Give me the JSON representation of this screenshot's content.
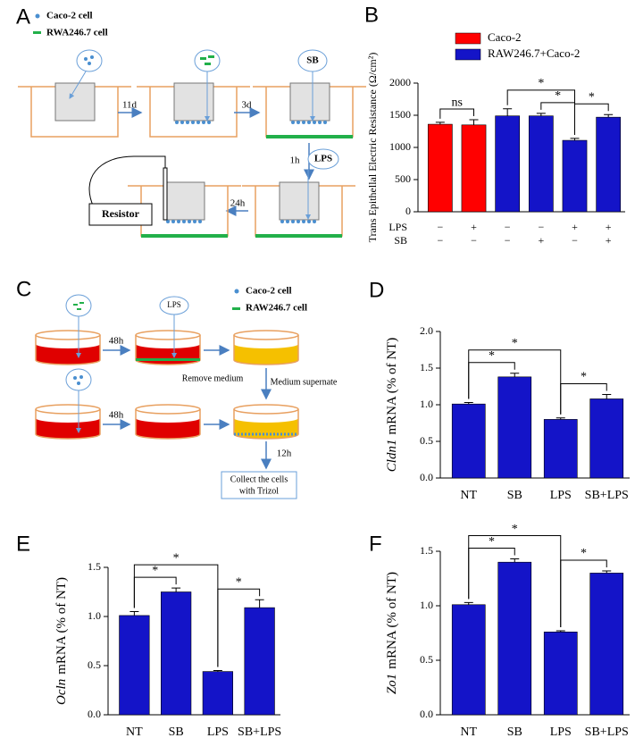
{
  "diagrams": {
    "A": {
      "label": "A",
      "legend": [
        "Caco-2 cell",
        "RWA246.7 cell"
      ],
      "steps": [
        "11d",
        "3d",
        "1h",
        "24h"
      ],
      "reagents": [
        "SB",
        "LPS"
      ],
      "device": "Resistor"
    },
    "C": {
      "label": "C",
      "reagent": "LPS",
      "legend": [
        "Caco-2 cell",
        "RAW246.7 cell"
      ],
      "steps": [
        "48h",
        "48h",
        "12h"
      ],
      "notes": [
        "Remove medium",
        "Medium supernate"
      ],
      "final_step": [
        "Collect the cells",
        "with Trizol"
      ]
    }
  },
  "chart_data": [
    {
      "type": "bar",
      "label": "B",
      "ylabel": "Trans Epithellal Electric Resistance (Ω/cm²)",
      "categories": [
        null,
        null,
        null,
        null,
        null,
        null
      ],
      "series": [
        {
          "name": "Caco-2",
          "color": "#ff0000",
          "values": [
            1360,
            1350,
            null,
            null,
            null,
            null
          ],
          "errors": [
            30,
            80,
            null,
            null,
            null,
            null
          ]
        },
        {
          "name": "RAW246.7+Caco-2",
          "color": "#1414c8",
          "values": [
            null,
            null,
            1490,
            1490,
            1110,
            1470
          ],
          "errors": [
            null,
            null,
            110,
            40,
            30,
            40
          ]
        }
      ],
      "treatments": [
        {
          "name": "LPS",
          "signs": [
            "−",
            "+",
            "−",
            "−",
            "+",
            "+"
          ]
        },
        {
          "name": "SB",
          "signs": [
            "−",
            "−",
            "−",
            "+",
            "−",
            "+"
          ]
        }
      ],
      "annotations": [
        {
          "text": "ns",
          "between": [
            0,
            1
          ]
        },
        {
          "text": "*",
          "between": [
            3,
            4
          ]
        },
        {
          "text": "*",
          "between": [
            4,
            5
          ]
        },
        {
          "text": "*",
          "between": [
            2,
            4
          ]
        }
      ],
      "ylim": [
        0,
        2000
      ],
      "yticks": [
        0,
        500,
        1000,
        1500,
        2000
      ]
    },
    {
      "type": "bar",
      "label": "D",
      "ylabel": {
        "gene": "Cldn1",
        "text": "mRNA (% of NT)"
      },
      "color": "#1414c8",
      "categories": [
        "NT",
        "SB",
        "LPS",
        "SB+LPS"
      ],
      "values": [
        1.01,
        1.38,
        0.8,
        1.08
      ],
      "errors": [
        0.02,
        0.05,
        0.02,
        0.06
      ],
      "annotations": [
        {
          "text": "*",
          "between": [
            0,
            1
          ]
        },
        {
          "text": "*",
          "between": [
            0,
            2
          ]
        },
        {
          "text": "*",
          "between": [
            2,
            3
          ]
        }
      ],
      "ylim": [
        0,
        2.0
      ],
      "yticks": [
        {
          "value": 0,
          "label": "0.0"
        },
        {
          "value": 0.5,
          "label": "0.5"
        },
        {
          "value": 1,
          "label": "1.0"
        },
        {
          "value": 1.5,
          "label": "1.5"
        },
        {
          "value": 2,
          "label": "2.0"
        }
      ]
    },
    {
      "type": "bar",
      "label": "E",
      "ylabel": {
        "gene": "Ocln",
        "text": "mRNA (% of NT)"
      },
      "color": "#1414c8",
      "categories": [
        "NT",
        "SB",
        "LPS",
        "SB+LPS"
      ],
      "values": [
        1.01,
        1.25,
        0.44,
        1.09
      ],
      "errors": [
        0.04,
        0.04,
        0.01,
        0.08
      ],
      "annotations": [
        {
          "text": "*",
          "between": [
            0,
            1
          ]
        },
        {
          "text": "*",
          "between": [
            0,
            2
          ]
        },
        {
          "text": "*",
          "between": [
            2,
            3
          ]
        }
      ],
      "ylim": [
        0,
        1.5
      ],
      "yticks": [
        {
          "value": 0,
          "label": "0.0"
        },
        {
          "value": 0.5,
          "label": "0.5"
        },
        {
          "value": 1,
          "label": "1.0"
        },
        {
          "value": 1.5,
          "label": "1.5"
        }
      ]
    },
    {
      "type": "bar",
      "label": "F",
      "ylabel": {
        "gene": "Zo1",
        "text": "mRNA (% of NT)"
      },
      "color": "#1414c8",
      "categories": [
        "NT",
        "SB",
        "LPS",
        "SB+LPS"
      ],
      "values": [
        1.01,
        1.4,
        0.76,
        1.3
      ],
      "errors": [
        0.02,
        0.03,
        0.01,
        0.02
      ],
      "annotations": [
        {
          "text": "*",
          "between": [
            0,
            1
          ]
        },
        {
          "text": "*",
          "between": [
            0,
            2
          ]
        },
        {
          "text": "*",
          "between": [
            2,
            3
          ]
        }
      ],
      "ylim": [
        0,
        1.5
      ],
      "yticks": [
        {
          "value": 0,
          "label": "0.0"
        },
        {
          "value": 0.5,
          "label": "0.5"
        },
        {
          "value": 1,
          "label": "1.0"
        },
        {
          "value": 1.5,
          "label": "1.5"
        }
      ]
    }
  ]
}
